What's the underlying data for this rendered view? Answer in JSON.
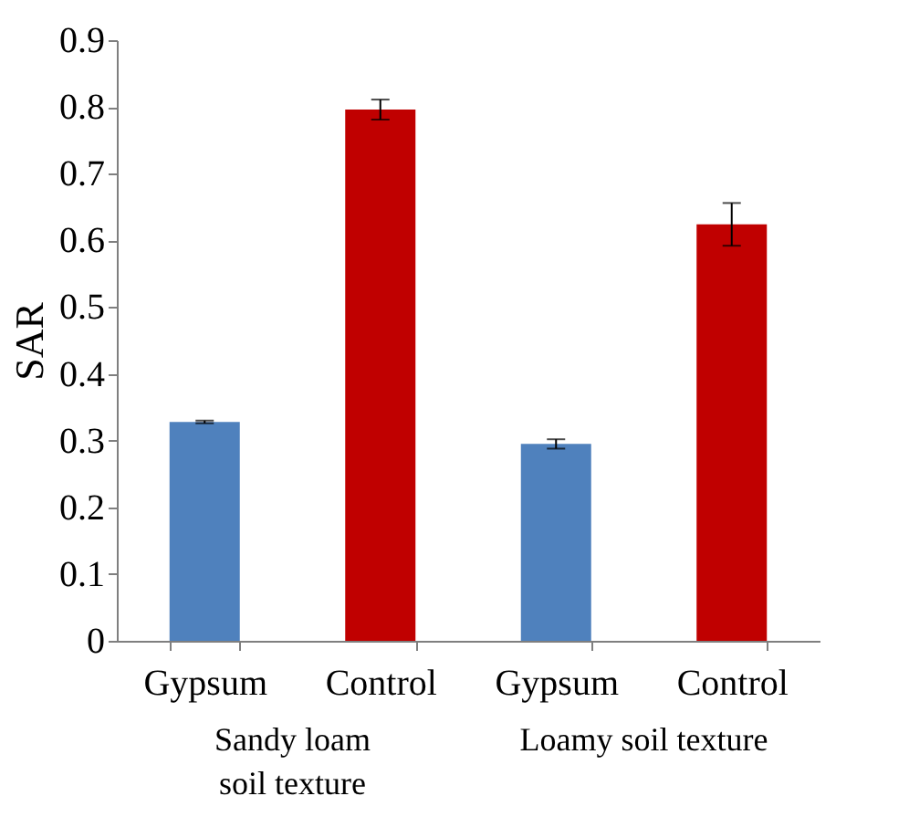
{
  "chart_data": {
    "type": "bar",
    "ylabel": "SAR",
    "categories": [
      "Gypsum",
      "Control",
      "Gypsum",
      "Control"
    ],
    "values": [
      0.328,
      0.796,
      0.295,
      0.624
    ],
    "errors": [
      0.002,
      0.015,
      0.007,
      0.032
    ],
    "colors": [
      "#4f81bd",
      "#c00000",
      "#4f81bd",
      "#c00000"
    ],
    "ylim": [
      0,
      0.9
    ],
    "yticks": [
      0,
      0.1,
      0.2,
      0.3,
      0.4,
      0.5,
      0.6,
      0.7,
      0.8,
      0.9
    ],
    "grid": false,
    "annotations": [
      "Sandy loam\nsoil texture",
      "Loamy soil texture"
    ]
  }
}
